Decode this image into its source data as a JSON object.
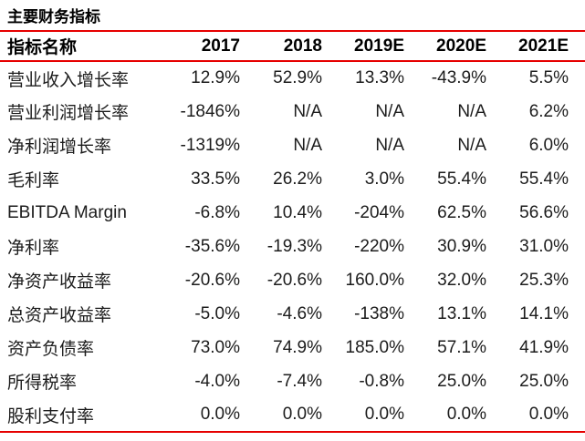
{
  "title": "主要财务指标",
  "colors": {
    "rule_red": "#e60000",
    "text": "#1c1c1c"
  },
  "table": {
    "header": [
      "指标名称",
      "2017",
      "2018",
      "2019E",
      "2020E",
      "2021E"
    ],
    "rows": [
      {
        "label": "营业收入增长率",
        "values": [
          "12.9%",
          "52.9%",
          "13.3%",
          "-43.9%",
          "5.5%"
        ]
      },
      {
        "label": "营业利润增长率",
        "values": [
          "-1846%",
          "N/A",
          "N/A",
          "N/A",
          "6.2%"
        ]
      },
      {
        "label": "净利润增长率",
        "values": [
          "-1319%",
          "N/A",
          "N/A",
          "N/A",
          "6.0%"
        ]
      },
      {
        "label": "毛利率",
        "values": [
          "33.5%",
          "26.2%",
          "3.0%",
          "55.4%",
          "55.4%"
        ]
      },
      {
        "label": "EBITDA Margin",
        "values": [
          "-6.8%",
          "10.4%",
          "-204%",
          "62.5%",
          "56.6%"
        ]
      },
      {
        "label": "净利率",
        "values": [
          "-35.6%",
          "-19.3%",
          "-220%",
          "30.9%",
          "31.0%"
        ]
      },
      {
        "label": "净资产收益率",
        "values": [
          "-20.6%",
          "-20.6%",
          "160.0%",
          "32.0%",
          "25.3%"
        ]
      },
      {
        "label": "总资产收益率",
        "values": [
          "-5.0%",
          "-4.6%",
          "-138%",
          "13.1%",
          "14.1%"
        ]
      },
      {
        "label": "资产负债率",
        "values": [
          "73.0%",
          "74.9%",
          "185.0%",
          "57.1%",
          "41.9%"
        ]
      },
      {
        "label": "所得税率",
        "values": [
          "-4.0%",
          "-7.4%",
          "-0.8%",
          "25.0%",
          "25.0%"
        ]
      },
      {
        "label": "股利支付率",
        "values": [
          "0.0%",
          "0.0%",
          "0.0%",
          "0.0%",
          "0.0%"
        ]
      }
    ]
  }
}
